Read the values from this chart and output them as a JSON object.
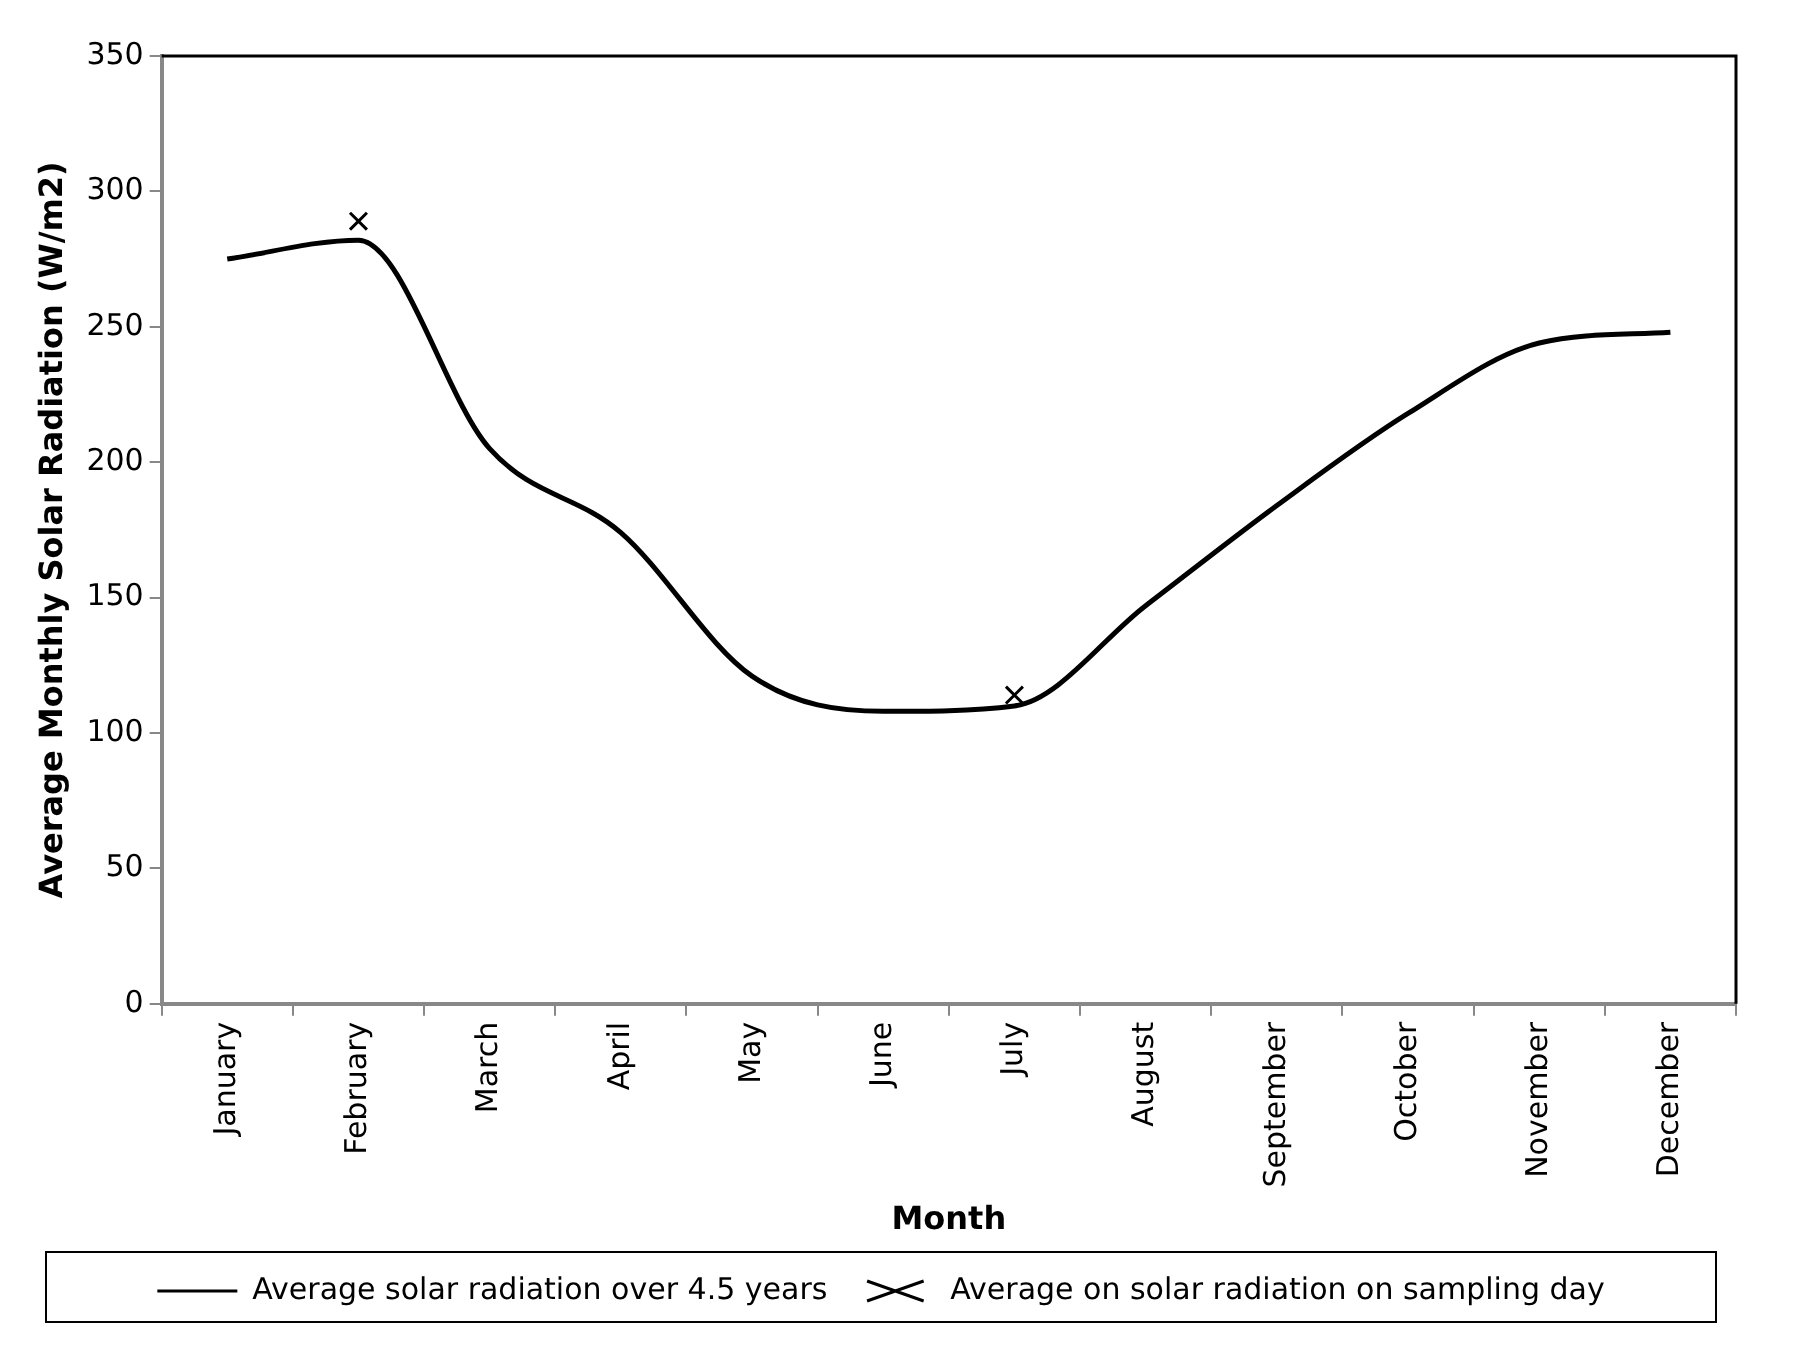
{
  "chart_data": {
    "type": "line",
    "xlabel": "Month",
    "ylabel": "Average Monthly Solar Radiation (W/m2)",
    "categories": [
      "January",
      "February",
      "March",
      "April",
      "May",
      "June",
      "July",
      "August",
      "September",
      "October",
      "November",
      "December"
    ],
    "series": [
      {
        "name": "Average solar radiation over 4.5 years",
        "color": "#000000",
        "marker": "none",
        "values": [
          275,
          282,
          205,
          174,
          121,
          108,
          110,
          147,
          184,
          218,
          244,
          248
        ]
      },
      {
        "name": "Average on solar radiation on sampling day",
        "type": "scatter",
        "color": "#000000",
        "marker": "cross",
        "x": [
          "February",
          "July"
        ],
        "values": [
          289,
          114
        ]
      }
    ],
    "ylim": [
      0,
      350
    ],
    "yticks": [
      0,
      50,
      100,
      150,
      200,
      250,
      300,
      350
    ],
    "grid": false,
    "legend": "bottom"
  }
}
